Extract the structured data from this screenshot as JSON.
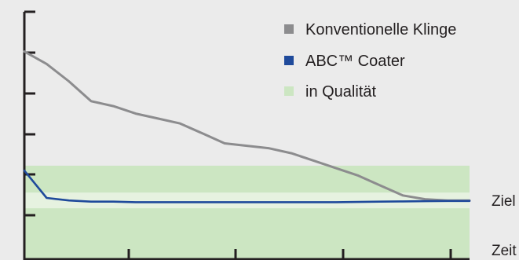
{
  "chart_data": {
    "type": "line",
    "title": "",
    "xlabel": "Zeit",
    "ylabel": "",
    "target_label": "Ziel",
    "x": [
      0,
      0.05,
      0.1,
      0.15,
      0.2,
      0.25,
      0.3,
      0.35,
      0.4,
      0.45,
      0.5,
      0.55,
      0.6,
      0.65,
      0.7,
      0.75,
      0.8,
      0.85,
      0.9,
      0.95,
      1.0
    ],
    "series": [
      {
        "name": "Konventionelle Klinge",
        "color": "#8c8c8e",
        "values": [
          0.84,
          0.79,
          0.72,
          0.64,
          0.62,
          0.59,
          0.57,
          0.55,
          0.51,
          0.47,
          0.46,
          0.45,
          0.43,
          0.4,
          0.37,
          0.34,
          0.3,
          0.26,
          0.245,
          0.24,
          0.24
        ]
      },
      {
        "name": "ABC™ Coater",
        "color": "#1f4a9b",
        "values": [
          0.36,
          0.25,
          0.24,
          0.235,
          0.235,
          0.233,
          0.233,
          0.233,
          0.233,
          0.233,
          0.233,
          0.233,
          0.233,
          0.233,
          0.233,
          0.234,
          0.235,
          0.236,
          0.237,
          0.238,
          0.238
        ]
      }
    ],
    "band": {
      "name": "in Qualität",
      "color": "#cce6c2",
      "from": 0.0,
      "to": 0.38
    },
    "target_value": 0.24,
    "xlim": [
      0,
      1
    ],
    "ylim": [
      0,
      1
    ],
    "grid": false,
    "legend_position": "top-right"
  }
}
